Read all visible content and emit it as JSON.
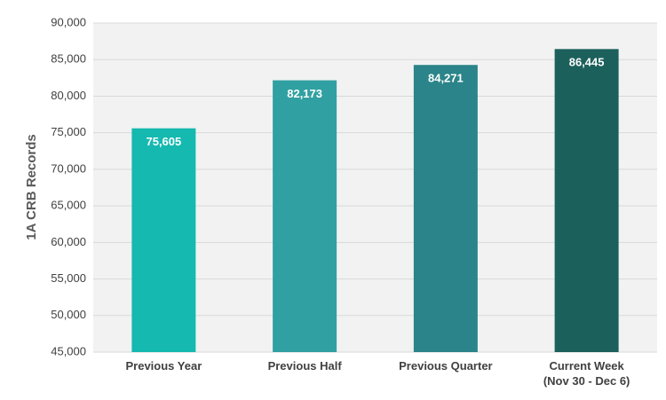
{
  "chart_data": {
    "type": "bar",
    "y_axis_label": "1A CRB Records",
    "categories": [
      "Previous Year",
      "Previous Half",
      "Previous Quarter",
      "Current Week\n(Nov 30 - Dec 6)"
    ],
    "values": [
      75605,
      82173,
      84271,
      86445
    ],
    "value_labels": [
      "75,605",
      "82,173",
      "84,271",
      "86,445"
    ],
    "colors": [
      "#15b9b0",
      "#31a0a2",
      "#2a8489",
      "#1c605c"
    ],
    "ylim": [
      45000,
      90000
    ],
    "yticks": [
      {
        "value": 45000,
        "label": "45,000"
      },
      {
        "value": 50000,
        "label": "50,000"
      },
      {
        "value": 55000,
        "label": "55,000"
      },
      {
        "value": 60000,
        "label": "60,000"
      },
      {
        "value": 65000,
        "label": "65,000"
      },
      {
        "value": 70000,
        "label": "70,000"
      },
      {
        "value": 75000,
        "label": "75,000"
      },
      {
        "value": 80000,
        "label": "80,000"
      },
      {
        "value": 85000,
        "label": "85,000"
      },
      {
        "value": 90000,
        "label": "90,000"
      }
    ],
    "grid": true
  }
}
